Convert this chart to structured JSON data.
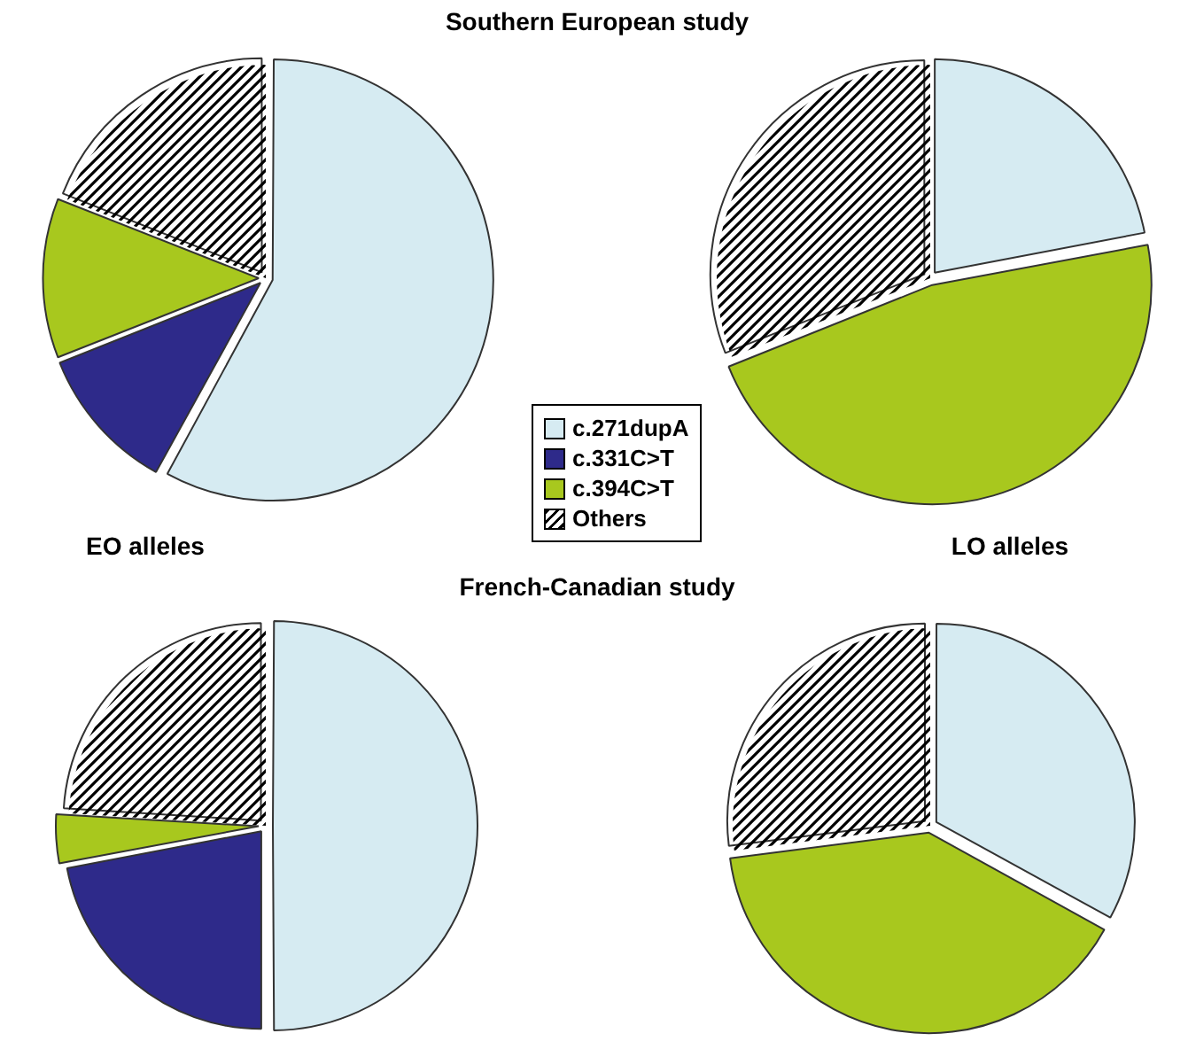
{
  "chart_data": [
    {
      "type": "pie",
      "title": "Southern European study",
      "xlabel": "EO alleles",
      "categories": [
        "c.271dupA",
        "c.331C>T",
        "c.394C>T",
        "Others"
      ],
      "values": [
        58,
        11,
        12,
        19
      ],
      "colors": [
        "#d6ebf2",
        "#2e2a8a",
        "#a8c81e",
        "#ffffff"
      ],
      "legend": "center"
    },
    {
      "type": "pie",
      "xlabel": "LO alleles",
      "categories": [
        null,
        null,
        null,
        null
      ],
      "values": [
        22,
        0,
        47,
        31
      ],
      "colors": [
        "#d6ebf2",
        "#2e2a8a",
        "#a8c81e",
        "#ffffff"
      ]
    },
    {
      "type": "pie",
      "title": "French-Canadian study",
      "categories": [
        null,
        null,
        null,
        null
      ],
      "values": [
        50,
        22,
        4,
        24
      ],
      "colors": [
        "#d6ebf2",
        "#2e2a8a",
        "#a8c81e",
        "#ffffff"
      ]
    },
    {
      "type": "pie",
      "categories": [
        null,
        null,
        null,
        null
      ],
      "values": [
        33,
        0,
        40,
        27
      ],
      "colors": [
        "#d6ebf2",
        "#2e2a8a",
        "#a8c81e",
        "#ffffff"
      ]
    }
  ]
}
